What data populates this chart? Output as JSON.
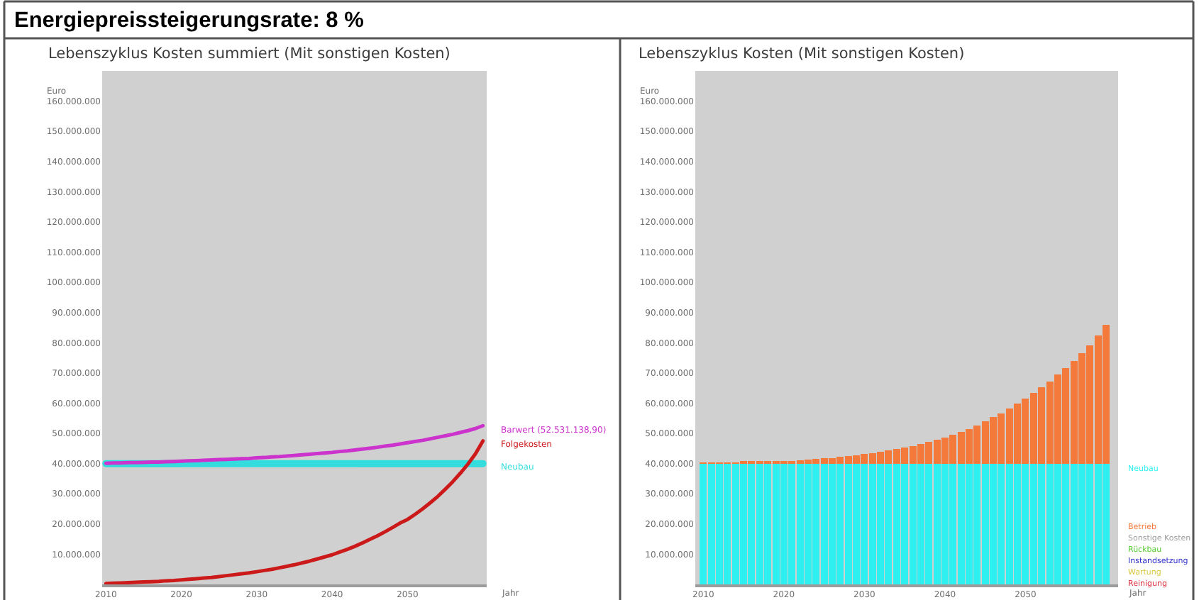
{
  "chart_data": [
    {
      "type": "line",
      "title": "Energiepreissteigerungsrate: 8 %",
      "subtitle": "Lebenszyklus Kosten summiert (Mit sonstigen Kosten)",
      "xlabel": "Jahr",
      "ylabel": "Euro",
      "x": [
        2010,
        2011,
        2012,
        2013,
        2014,
        2015,
        2016,
        2017,
        2018,
        2019,
        2020,
        2021,
        2022,
        2023,
        2024,
        2025,
        2026,
        2027,
        2028,
        2029,
        2030,
        2031,
        2032,
        2033,
        2034,
        2035,
        2036,
        2037,
        2038,
        2039,
        2040,
        2041,
        2042,
        2043,
        2044,
        2045,
        2046,
        2047,
        2048,
        2049,
        2050,
        2051,
        2052,
        2053,
        2054,
        2055,
        2056,
        2057,
        2058,
        2059,
        2060
      ],
      "xlim": [
        2009.5,
        2060.5
      ],
      "xticks": [
        2010,
        2020,
        2030,
        2040,
        2050
      ],
      "ylim": [
        0,
        170000000
      ],
      "yticks": [
        {
          "value": 10000000,
          "label": "10.000.000"
        },
        {
          "value": 20000000,
          "label": "20.000.000"
        },
        {
          "value": 30000000,
          "label": "30.000.000"
        },
        {
          "value": 40000000,
          "label": "40.000.000"
        },
        {
          "value": 50000000,
          "label": "50.000.000"
        },
        {
          "value": 60000000,
          "label": "60.000.000"
        },
        {
          "value": 70000000,
          "label": "70.000.000"
        },
        {
          "value": 80000000,
          "label": "80.000.000"
        },
        {
          "value": 90000000,
          "label": "90.000.000"
        },
        {
          "value": 100000000,
          "label": "100.000.000"
        },
        {
          "value": 110000000,
          "label": "110.000.000"
        },
        {
          "value": 120000000,
          "label": "120.000.000"
        },
        {
          "value": 130000000,
          "label": "130.000.000"
        },
        {
          "value": 140000000,
          "label": "140.000.000"
        },
        {
          "value": 150000000,
          "label": "150.000.000"
        },
        {
          "value": 160000000,
          "label": "160.000.000"
        }
      ],
      "series": [
        {
          "name": "Barwert (52.531.138,90)",
          "color": "#cc33cc",
          "values": [
            40100000,
            40200000,
            40200000,
            40300000,
            40300000,
            40400000,
            40500000,
            40500000,
            40600000,
            40700000,
            40800000,
            40900000,
            41000000,
            41100000,
            41200000,
            41300000,
            41400000,
            41500000,
            41600000,
            41700000,
            41900000,
            42000000,
            42200000,
            42300000,
            42500000,
            42700000,
            42900000,
            43100000,
            43300000,
            43500000,
            43700000,
            44000000,
            44200000,
            44500000,
            44800000,
            45100000,
            45400000,
            45800000,
            46100000,
            46500000,
            46900000,
            47300000,
            47700000,
            48200000,
            48700000,
            49200000,
            49700000,
            50300000,
            50900000,
            51600000,
            52531138.9
          ]
        },
        {
          "name": "Folgekosten",
          "color": "#cc1a1a",
          "values": [
            300000,
            400000,
            500000,
            600000,
            700000,
            800000,
            900000,
            1000000,
            1200000,
            1300000,
            1500000,
            1700000,
            1900000,
            2100000,
            2300000,
            2600000,
            2900000,
            3200000,
            3500000,
            3800000,
            4200000,
            4600000,
            5000000,
            5500000,
            6000000,
            6500000,
            7100000,
            7700000,
            8400000,
            9100000,
            9800000,
            10700000,
            11600000,
            12600000,
            13700000,
            14900000,
            16100000,
            17400000,
            18800000,
            20300000,
            21500000,
            23200000,
            25000000,
            27000000,
            29100000,
            31500000,
            34000000,
            36800000,
            39800000,
            43200000,
            47500000
          ]
        },
        {
          "name": "Neubau",
          "color": "#33dddd",
          "values": [
            40000000,
            40000000,
            40000000,
            40000000,
            40000000,
            40000000,
            40000000,
            40000000,
            40000000,
            40000000,
            40000000,
            40000000,
            40000000,
            40000000,
            40000000,
            40000000,
            40000000,
            40000000,
            40000000,
            40000000,
            40000000,
            40000000,
            40000000,
            40000000,
            40000000,
            40000000,
            40000000,
            40000000,
            40000000,
            40000000,
            40000000,
            40000000,
            40000000,
            40000000,
            40000000,
            40000000,
            40000000,
            40000000,
            40000000,
            40000000,
            40000000,
            40000000,
            40000000,
            40000000,
            40000000,
            40000000,
            40000000,
            40000000,
            40000000,
            40000000,
            40000000
          ]
        }
      ]
    },
    {
      "type": "bar",
      "stacked": true,
      "title": "Lebenszyklus Kosten (Mit sonstigen Kosten)",
      "xlabel": "Jahr",
      "ylabel": "Euro",
      "x": [
        2010,
        2011,
        2012,
        2013,
        2014,
        2015,
        2016,
        2017,
        2018,
        2019,
        2020,
        2021,
        2022,
        2023,
        2024,
        2025,
        2026,
        2027,
        2028,
        2029,
        2030,
        2031,
        2032,
        2033,
        2034,
        2035,
        2036,
        2037,
        2038,
        2039,
        2040,
        2041,
        2042,
        2043,
        2044,
        2045,
        2046,
        2047,
        2048,
        2049,
        2050,
        2051,
        2052,
        2053,
        2054,
        2055,
        2056,
        2057,
        2058,
        2059,
        2060
      ],
      "xlim": [
        2009,
        2061.5
      ],
      "xticks": [
        2010,
        2020,
        2030,
        2040,
        2050
      ],
      "ylim": [
        0,
        170000000
      ],
      "yticks": [
        {
          "value": 10000000,
          "label": "10.000.000"
        },
        {
          "value": 20000000,
          "label": "20.000.000"
        },
        {
          "value": 30000000,
          "label": "30.000.000"
        },
        {
          "value": 40000000,
          "label": "40.000.000"
        },
        {
          "value": 50000000,
          "label": "50.000.000"
        },
        {
          "value": 60000000,
          "label": "60.000.000"
        },
        {
          "value": 70000000,
          "label": "70.000.000"
        },
        {
          "value": 80000000,
          "label": "80.000.000"
        },
        {
          "value": 90000000,
          "label": "90.000.000"
        },
        {
          "value": 100000000,
          "label": "100.000.000"
        },
        {
          "value": 110000000,
          "label": "110.000.000"
        },
        {
          "value": 120000000,
          "label": "120.000.000"
        },
        {
          "value": 130000000,
          "label": "130.000.000"
        },
        {
          "value": 140000000,
          "label": "140.000.000"
        },
        {
          "value": 150000000,
          "label": "150.000.000"
        },
        {
          "value": 160000000,
          "label": "160.000.000"
        }
      ],
      "series": [
        {
          "name": "Neubau",
          "color": "#2ef0f0",
          "values": [
            40000000,
            40000000,
            40000000,
            40000000,
            40000000,
            40000000,
            40000000,
            40000000,
            40000000,
            40000000,
            40000000,
            40000000,
            40000000,
            40000000,
            40000000,
            40000000,
            40000000,
            40000000,
            40000000,
            40000000,
            40000000,
            40000000,
            40000000,
            40000000,
            40000000,
            40000000,
            40000000,
            40000000,
            40000000,
            40000000,
            40000000,
            40000000,
            40000000,
            40000000,
            40000000,
            40000000,
            40000000,
            40000000,
            40000000,
            40000000,
            40000000,
            40000000,
            40000000,
            40000000,
            40000000,
            40000000,
            40000000,
            40000000,
            40000000,
            40000000,
            40000000
          ]
        },
        {
          "name": "Betrieb",
          "color": "#f47a3c",
          "values": [
            100000,
            200000,
            200000,
            300000,
            300000,
            400000,
            500000,
            500000,
            600000,
            700000,
            800000,
            900000,
            1100000,
            1300000,
            1500000,
            1700000,
            1900000,
            2200000,
            2500000,
            2800000,
            3100000,
            3500000,
            3900000,
            4300000,
            4800000,
            5300000,
            5900000,
            6500000,
            7200000,
            7900000,
            8600000,
            9500000,
            10400000,
            11500000,
            12700000,
            14000000,
            15300000,
            16700000,
            18200000,
            19800000,
            21500000,
            23300000,
            25200000,
            27200000,
            29400000,
            31700000,
            34000000,
            36500000,
            39200000,
            42500000,
            46000000
          ]
        },
        {
          "name": "Sonstige Kosten",
          "color": "#a0a0a0",
          "values": [
            0,
            0,
            0,
            0,
            0,
            0,
            0,
            0,
            0,
            0,
            0,
            0,
            0,
            0,
            0,
            0,
            0,
            0,
            0,
            0,
            0,
            0,
            0,
            0,
            0,
            0,
            0,
            0,
            0,
            0,
            0,
            0,
            0,
            0,
            0,
            0,
            0,
            0,
            0,
            0,
            0,
            0,
            0,
            0,
            0,
            0,
            0,
            0,
            0,
            0,
            0
          ]
        },
        {
          "name": "Rückbau",
          "color": "#55cc33",
          "values": [
            0,
            0,
            0,
            0,
            0,
            0,
            0,
            0,
            0,
            0,
            0,
            0,
            0,
            0,
            0,
            0,
            0,
            0,
            0,
            0,
            0,
            0,
            0,
            0,
            0,
            0,
            0,
            0,
            0,
            0,
            0,
            0,
            0,
            0,
            0,
            0,
            0,
            0,
            0,
            0,
            0,
            0,
            0,
            0,
            0,
            0,
            0,
            0,
            0,
            0,
            0
          ]
        },
        {
          "name": "Instandsetzung",
          "color": "#3333cc",
          "values": [
            0,
            0,
            0,
            0,
            0,
            0,
            0,
            0,
            0,
            0,
            0,
            0,
            0,
            0,
            0,
            0,
            0,
            0,
            0,
            0,
            0,
            0,
            0,
            0,
            0,
            0,
            0,
            0,
            0,
            0,
            0,
            0,
            0,
            0,
            0,
            0,
            0,
            0,
            0,
            0,
            0,
            0,
            0,
            0,
            0,
            0,
            0,
            0,
            0,
            0,
            0
          ]
        },
        {
          "name": "Wartung",
          "color": "#d8c840",
          "values": [
            0,
            0,
            0,
            0,
            0,
            0,
            0,
            0,
            0,
            0,
            0,
            0,
            0,
            0,
            0,
            0,
            0,
            0,
            0,
            0,
            0,
            0,
            0,
            0,
            0,
            0,
            0,
            0,
            0,
            0,
            0,
            0,
            0,
            0,
            0,
            0,
            0,
            0,
            0,
            0,
            0,
            0,
            0,
            0,
            0,
            0,
            0,
            0,
            0,
            0,
            0
          ]
        },
        {
          "name": "Reinigung",
          "color": "#dd3344",
          "values": [
            0,
            0,
            0,
            0,
            0,
            0,
            0,
            0,
            0,
            0,
            0,
            0,
            0,
            0,
            0,
            0,
            0,
            0,
            0,
            0,
            0,
            0,
            0,
            0,
            0,
            0,
            0,
            0,
            0,
            0,
            0,
            0,
            0,
            0,
            0,
            0,
            0,
            0,
            0,
            0,
            0,
            0,
            0,
            0,
            0,
            0,
            0,
            0,
            0,
            0,
            0
          ]
        }
      ]
    }
  ]
}
